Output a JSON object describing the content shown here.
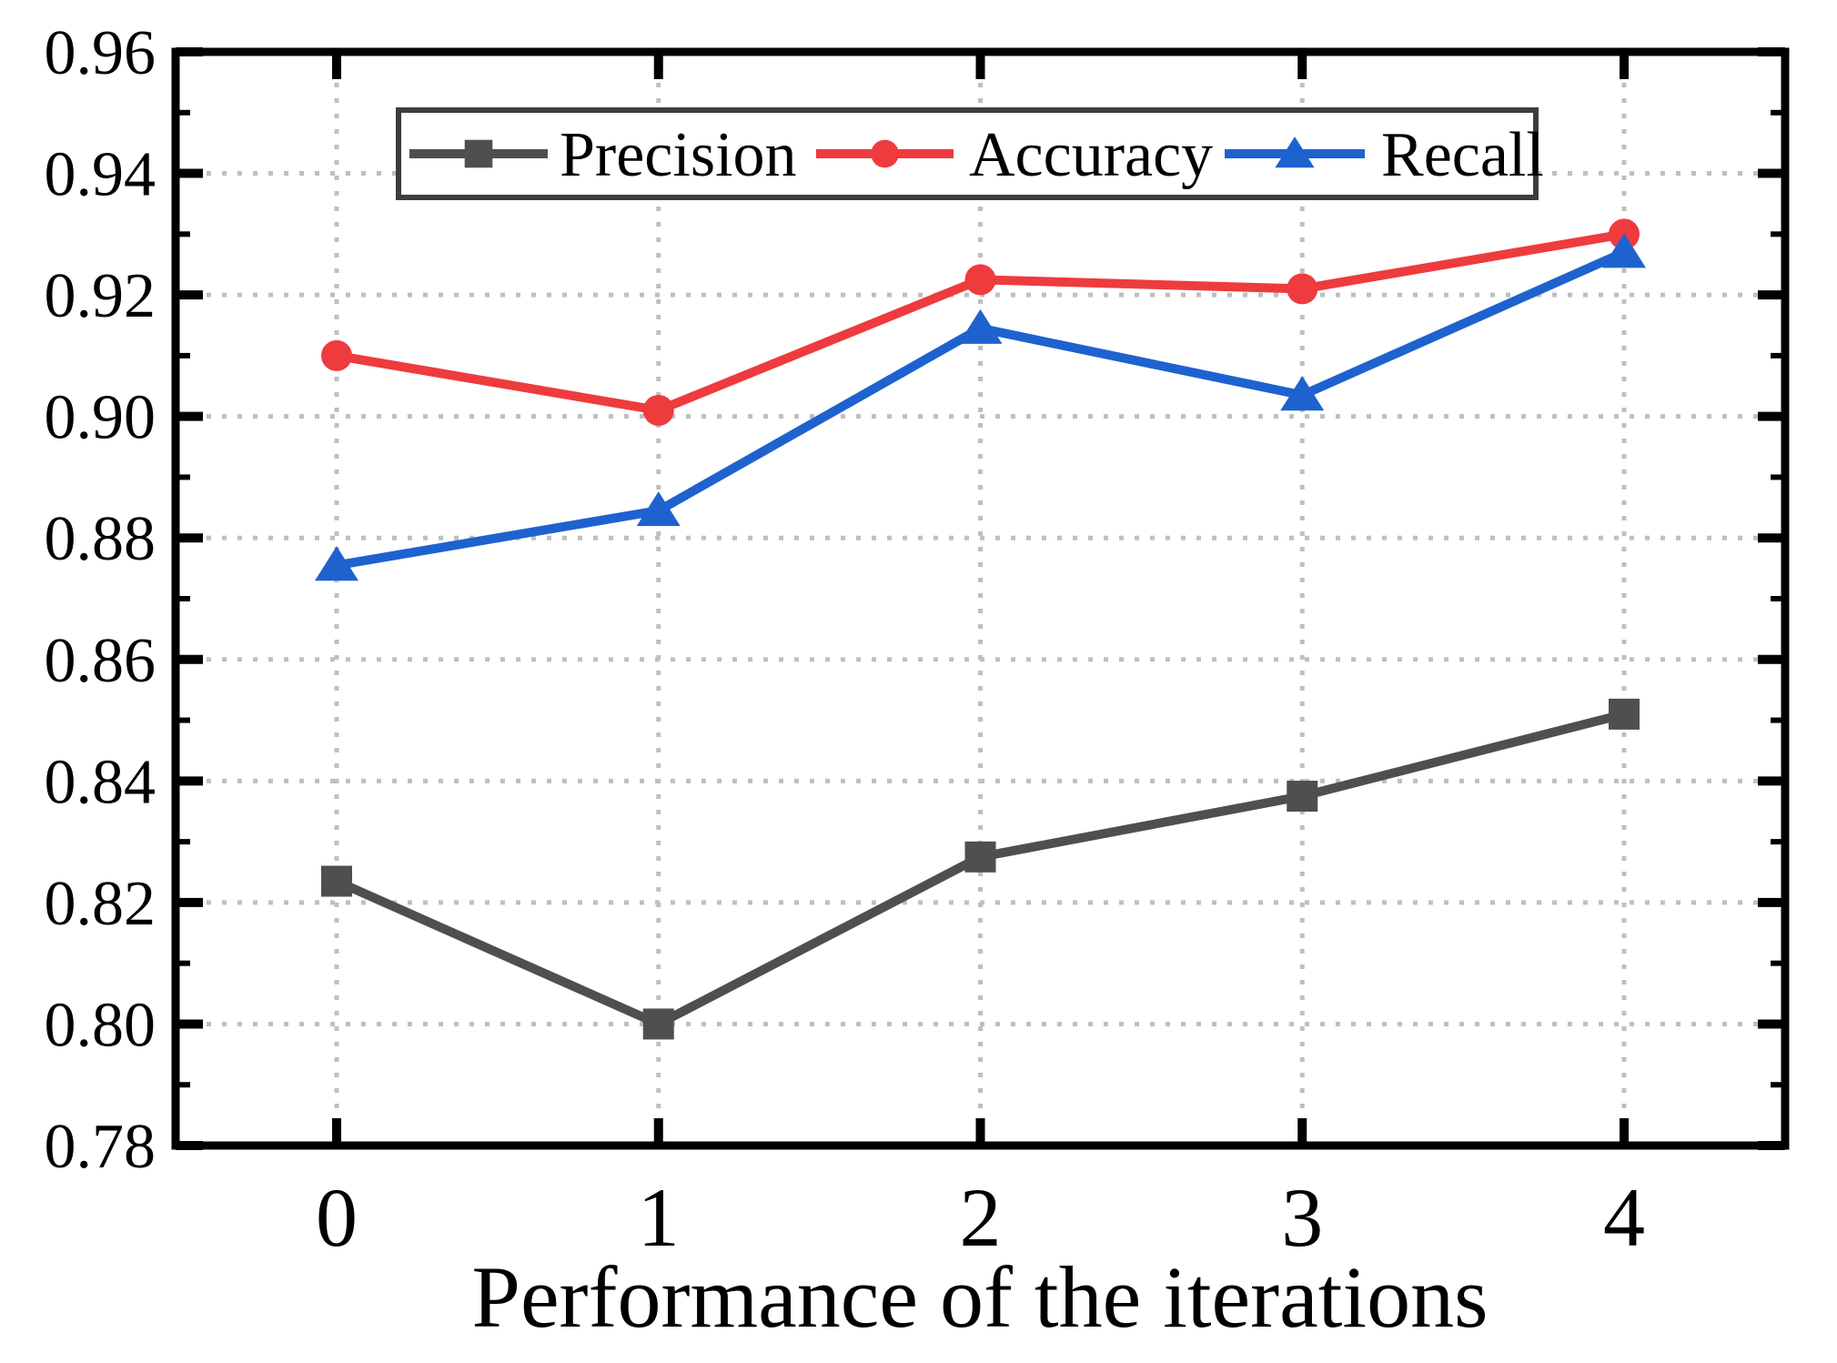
{
  "chart_data": {
    "type": "line",
    "title": "",
    "xlabel": "Performance of the iterations",
    "ylabel": "",
    "x": [
      0,
      1,
      2,
      3,
      4
    ],
    "xtick_labels": [
      "0",
      "1",
      "2",
      "3",
      "4"
    ],
    "ylim": [
      0.78,
      0.96
    ],
    "ytick_step": 0.02,
    "minor_ytick_step": 0.01,
    "ytick_labels": [
      "0.78",
      "0.80",
      "0.82",
      "0.84",
      "0.86",
      "0.88",
      "0.90",
      "0.92",
      "0.94",
      "0.96"
    ],
    "grid": "dotted",
    "legend_position": "top-center-inside",
    "series": [
      {
        "name": "Precision",
        "marker": "square",
        "color": "#4f4f4f",
        "values": [
          0.8235,
          0.8,
          0.8275,
          0.8375,
          0.851
        ]
      },
      {
        "name": "Accuracy",
        "marker": "circle",
        "color": "#ee3b3e",
        "values": [
          0.91,
          0.901,
          0.9225,
          0.921,
          0.93
        ]
      },
      {
        "name": "Recall",
        "marker": "triangle-up",
        "color": "#1e62d0",
        "values": [
          0.8755,
          0.8845,
          0.9145,
          0.9035,
          0.927
        ]
      }
    ],
    "colors": {
      "axis": "#000000",
      "grid": "#bfbfbf",
      "legend_border": "#3d3d3d",
      "background": "#ffffff",
      "text": "#000000"
    }
  }
}
